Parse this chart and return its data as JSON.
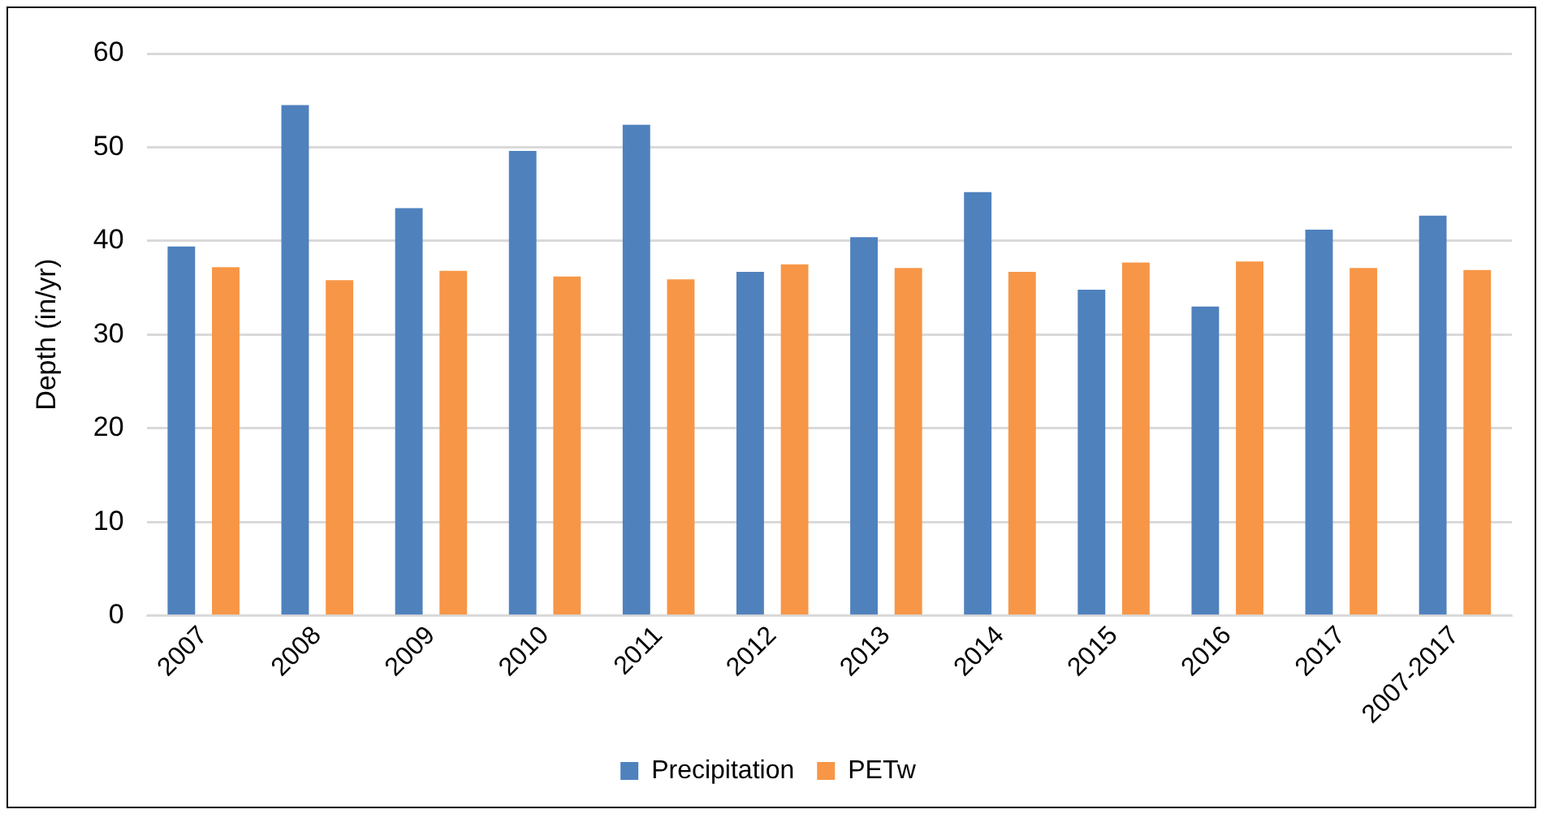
{
  "chart_data": {
    "type": "bar",
    "ylabel": "Depth (in/yr)",
    "categories": [
      "2007",
      "2008",
      "2009",
      "2010",
      "2011",
      "2012",
      "2013",
      "2014",
      "2015",
      "2016",
      "2017",
      "2007-2017"
    ],
    "series": [
      {
        "name": "Precipitation",
        "color": "#4f81bd",
        "values": [
          39.4,
          54.5,
          43.5,
          49.6,
          52.4,
          36.7,
          40.4,
          45.2,
          34.8,
          33.0,
          41.2,
          42.7
        ]
      },
      {
        "name": "PETw",
        "color": "#f79646",
        "values": [
          37.2,
          35.8,
          36.8,
          36.2,
          35.9,
          37.5,
          37.1,
          36.7,
          37.7,
          37.8,
          37.1,
          36.9
        ]
      }
    ],
    "ylim": [
      0,
      60
    ],
    "yticks": [
      0,
      10,
      20,
      30,
      40,
      50,
      60
    ],
    "grid": "y",
    "legend": "bottom"
  }
}
